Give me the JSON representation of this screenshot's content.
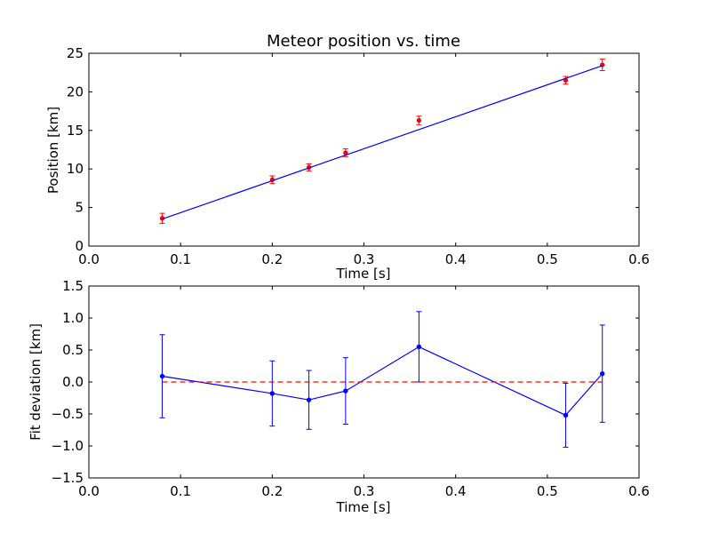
{
  "chart_data": [
    {
      "type": "scatter",
      "title": "Meteor position vs. time",
      "xlabel": "Time [s]",
      "ylabel": "Position [km]",
      "xlim": [
        0.0,
        0.6
      ],
      "ylim": [
        0,
        25
      ],
      "xticks": [
        "0.0",
        "0.1",
        "0.2",
        "0.3",
        "0.4",
        "0.5",
        "0.6"
      ],
      "yticks": [
        "0",
        "5",
        "10",
        "15",
        "20",
        "25"
      ],
      "grid": false,
      "series": [
        {
          "style": "points-with-errorbars",
          "color": "#ff0000",
          "x": [
            0.08,
            0.2,
            0.24,
            0.28,
            0.36,
            0.52,
            0.56
          ],
          "y": [
            3.6,
            8.6,
            10.2,
            12.1,
            16.3,
            21.5,
            23.5
          ],
          "yerr": [
            0.65,
            0.5,
            0.45,
            0.5,
            0.55,
            0.5,
            0.75
          ]
        },
        {
          "style": "line",
          "color": "#0000ff",
          "x": [
            0.08,
            0.56
          ],
          "y": [
            3.5,
            23.4
          ]
        }
      ]
    },
    {
      "type": "line",
      "title": "",
      "xlabel": "Time [s]",
      "ylabel": "Fit deviation [km]",
      "xlim": [
        0.0,
        0.6
      ],
      "ylim": [
        -1.5,
        1.5
      ],
      "xticks": [
        "0.0",
        "0.1",
        "0.2",
        "0.3",
        "0.4",
        "0.5",
        "0.6"
      ],
      "yticks": [
        "−1.5",
        "−1.0",
        "−0.5",
        "0.0",
        "0.5",
        "1.0",
        "1.5"
      ],
      "grid": false,
      "series": [
        {
          "style": "line-with-errorbars",
          "color": "#0000ff",
          "x": [
            0.08,
            0.2,
            0.24,
            0.28,
            0.36,
            0.52,
            0.56
          ],
          "y": [
            0.09,
            -0.18,
            -0.28,
            -0.14,
            0.55,
            -0.52,
            0.13
          ],
          "yerr": [
            0.65,
            0.51,
            0.46,
            0.52,
            0.55,
            0.5,
            0.76
          ]
        },
        {
          "style": "dashed-reference",
          "color": "#ff0000",
          "x": [
            0.08,
            0.56
          ],
          "y": [
            0,
            0
          ]
        }
      ]
    }
  ]
}
